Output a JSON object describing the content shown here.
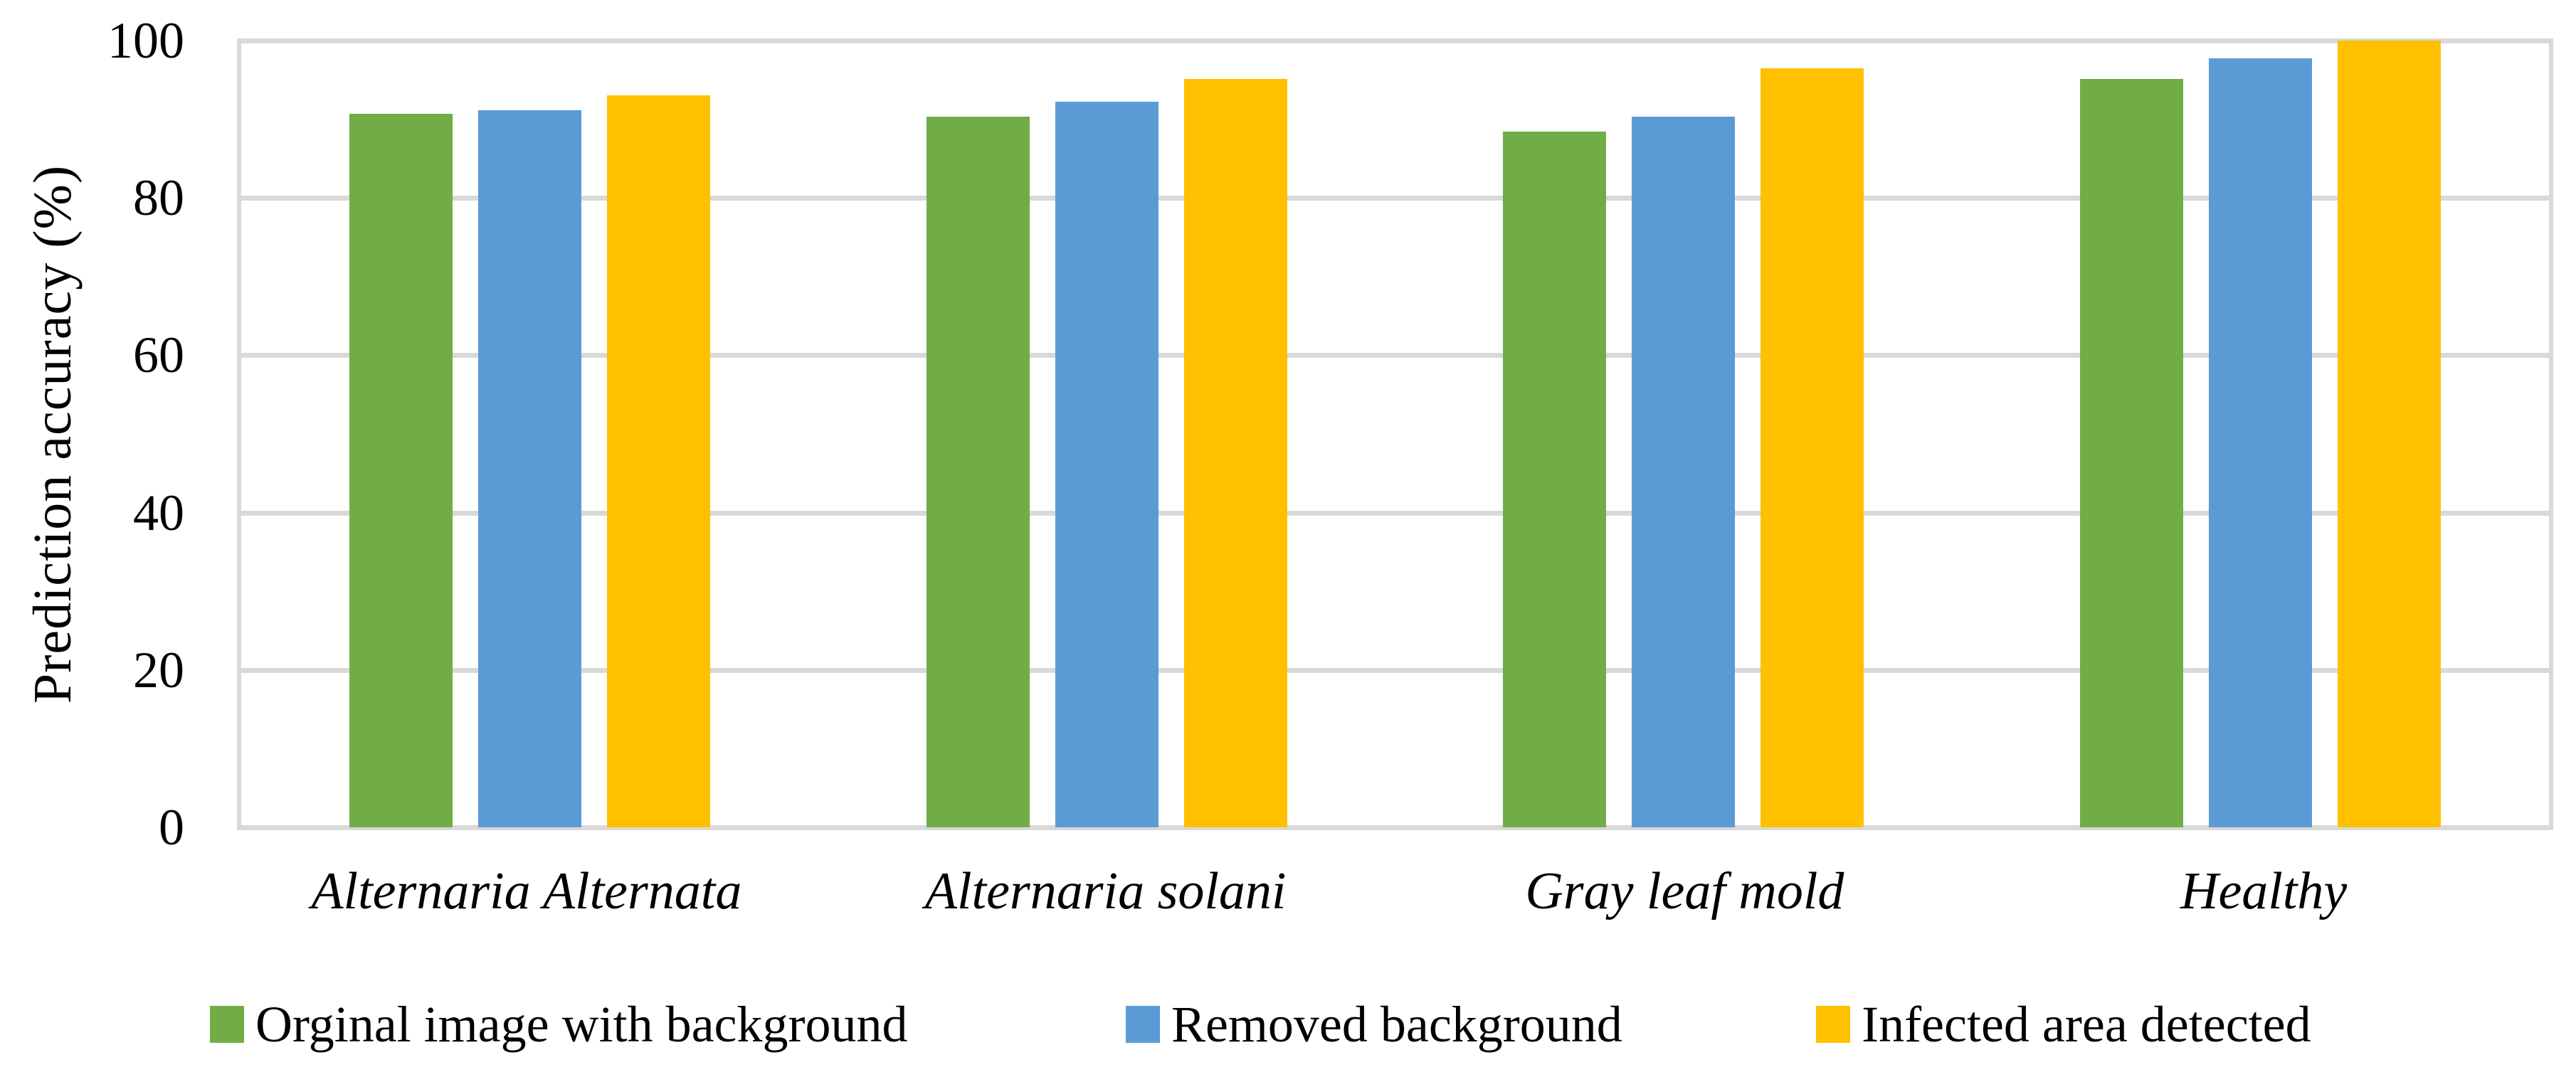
{
  "chart_data": {
    "type": "bar",
    "title": "",
    "xlabel": "",
    "ylabel": "Prediction accuracy (%)",
    "ylim": [
      0,
      100
    ],
    "yticks": [
      0,
      20,
      40,
      60,
      80,
      100
    ],
    "grid": true,
    "legend_position": "bottom",
    "categories": [
      "Alternaria Alternata",
      "Alternaria solani",
      "Gray leaf mold",
      "Healthy"
    ],
    "series": [
      {
        "name": "Orginal image with background",
        "color": "#70AD47",
        "values": [
          90.7,
          90.3,
          88.4,
          95.1
        ]
      },
      {
        "name": "Removed background",
        "color": "#5B9BD5",
        "values": [
          91.1,
          92.2,
          90.3,
          97.7
        ]
      },
      {
        "name": "Infected area detected",
        "color": "#FFC000",
        "values": [
          93.0,
          95.1,
          96.5,
          100
        ]
      }
    ],
    "colors": {
      "gridline": "#D9D9D9",
      "text": "#000000",
      "background": "#FFFFFF"
    },
    "legend_x_percents": [
      8.15,
      43.7,
      70.5
    ]
  }
}
